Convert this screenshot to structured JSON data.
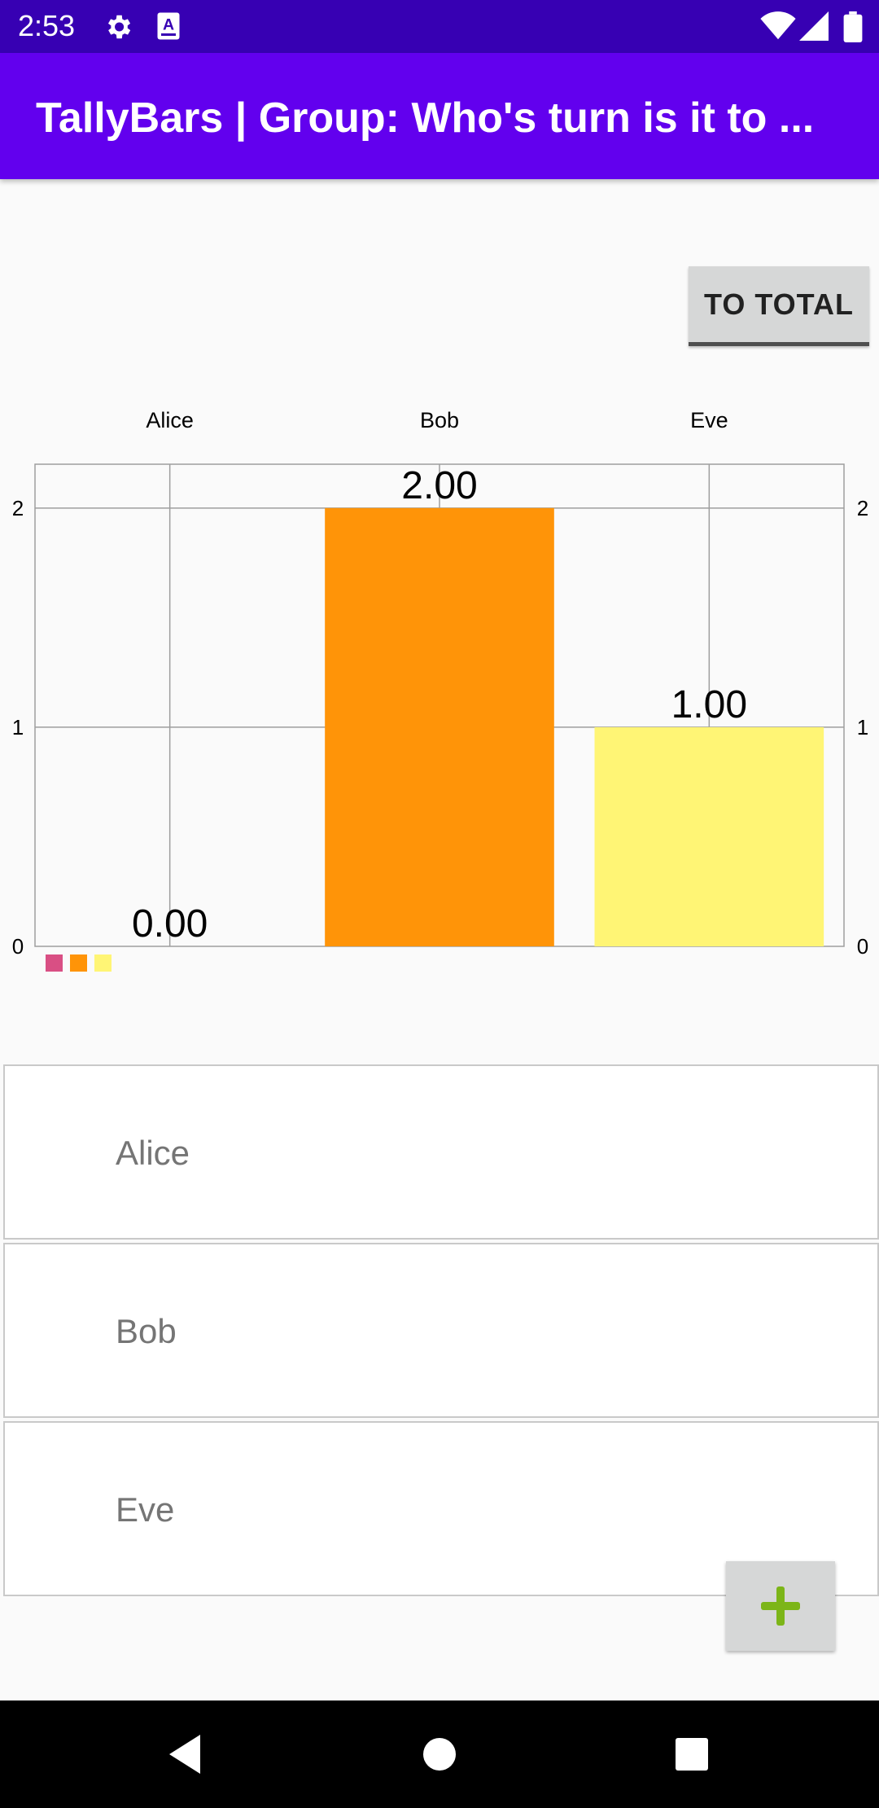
{
  "status_bar": {
    "time": "2:53",
    "icons": [
      "gear-icon",
      "text-a-icon",
      "wifi-icon",
      "signal-icon",
      "battery-icon"
    ]
  },
  "app_bar": {
    "title": "TallyBars | Group: Who's turn is it to ..."
  },
  "buttons": {
    "to_total": "TO TOTAL",
    "add_icon": "plus-icon"
  },
  "colors": {
    "primary_dark": "#3700b3",
    "primary": "#6200ee",
    "add_icon": "#7cb518"
  },
  "chart_data": {
    "type": "bar",
    "categories": [
      "Alice",
      "Bob",
      "Eve"
    ],
    "values": [
      0,
      2,
      1
    ],
    "value_labels": [
      "0.00",
      "2.00",
      "1.00"
    ],
    "colors": [
      "#d94f84",
      "#ff9408",
      "#fff575"
    ],
    "y_ticks": [
      "0",
      "1",
      "2"
    ],
    "ylim": [
      0,
      2.2
    ],
    "grid": true,
    "legend": "bottom-left",
    "title": "",
    "xlabel": "",
    "ylabel": ""
  },
  "list": {
    "items": [
      {
        "label": "Alice"
      },
      {
        "label": "Bob"
      },
      {
        "label": "Eve"
      }
    ]
  },
  "nav_bar": {
    "icons": [
      "back-icon",
      "home-icon",
      "recents-icon"
    ]
  }
}
